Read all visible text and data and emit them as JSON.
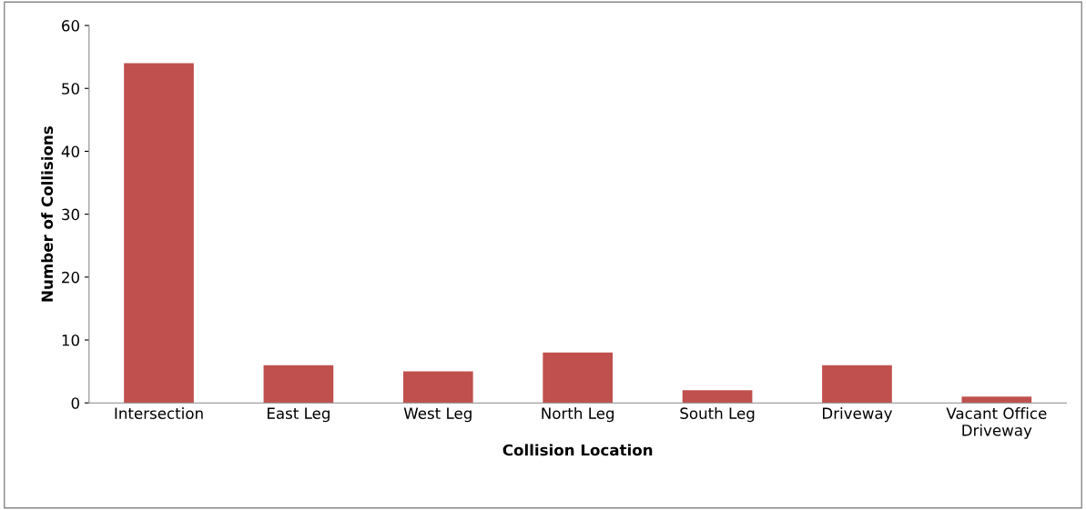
{
  "chart_data": {
    "type": "bar",
    "xlabel": "Collision Location",
    "ylabel": "Number of Collisions",
    "categories": [
      "Intersection",
      "East Leg",
      "West Leg",
      "North Leg",
      "South Leg",
      "Driveway",
      "Vacant Office\nDriveway"
    ],
    "values": [
      54,
      6,
      5,
      8,
      2,
      6,
      1
    ],
    "color": "#c0504d",
    "ylim": [
      0,
      60
    ],
    "yticks": [
      0,
      10,
      20,
      30,
      40,
      50,
      60
    ],
    "grid": false
  }
}
